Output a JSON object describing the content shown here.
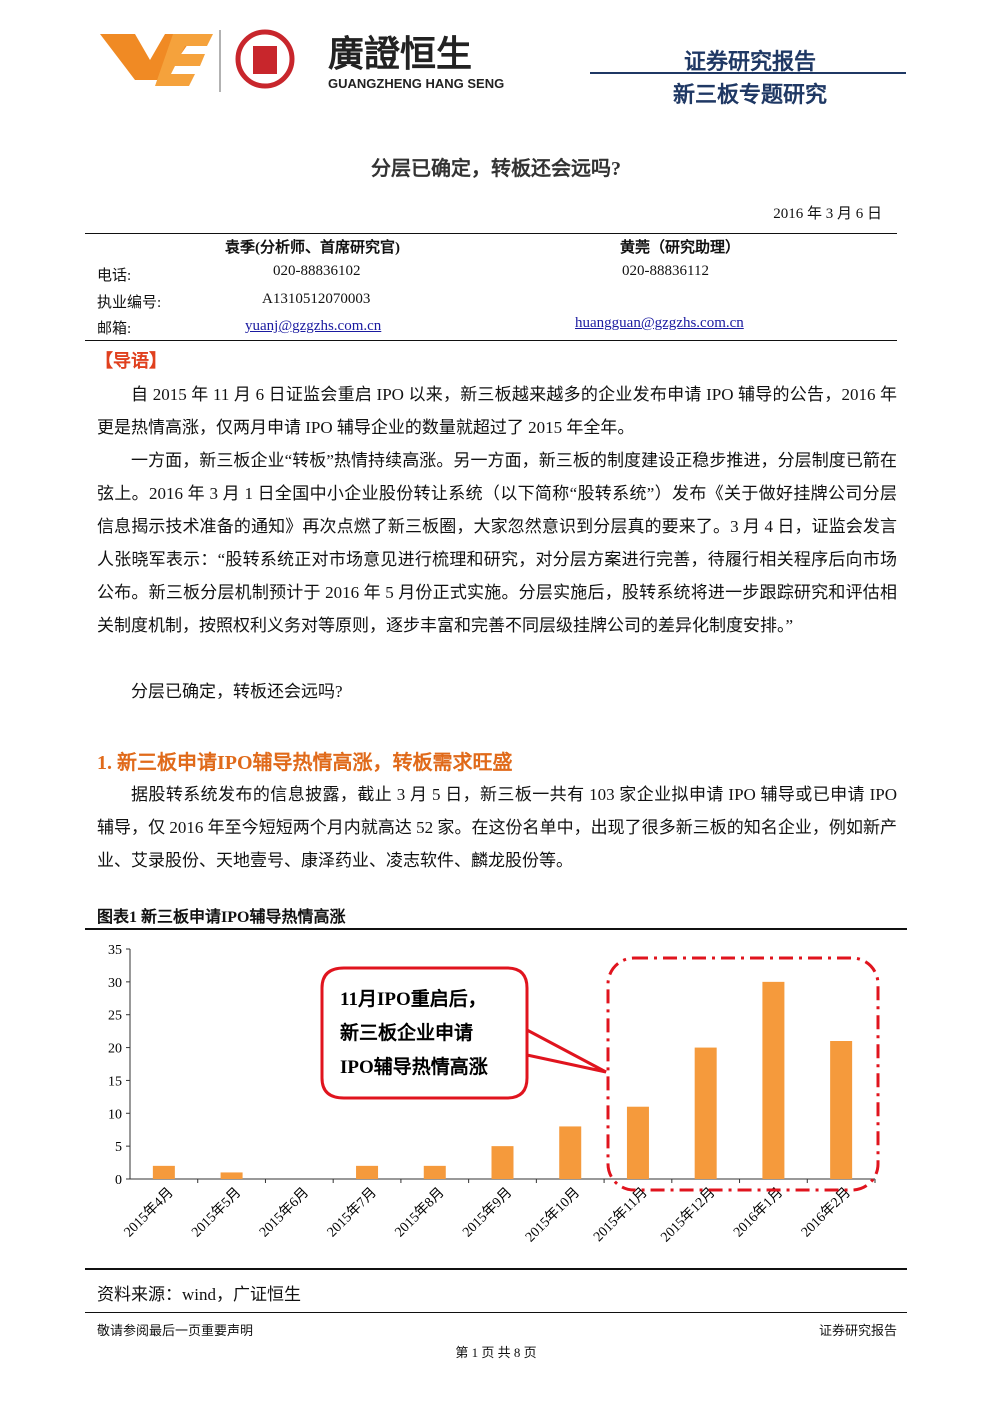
{
  "header": {
    "brand_cn": "廣證恒生",
    "brand_en": "GUANGZHENG HANG SENG",
    "report_type": "证券研究报告",
    "report_subtype": "新三板专题研究"
  },
  "title": "分层已确定，转板还会远吗?",
  "date": "2016 年 3 月 6 日",
  "authors": {
    "labels": [
      "电话:",
      "执业编号:",
      "邮箱:"
    ],
    "list": [
      {
        "name": "袁季(分析师、首席研究官)",
        "phone": "020-88836102",
        "license": "A1310512070003",
        "email": "yuanj@gzgzhs.com.cn"
      },
      {
        "name": "黄莞（研究助理）",
        "phone": "020-88836112",
        "email": "huangguan@gzgzhs.com.cn"
      }
    ]
  },
  "intro": {
    "heading": "【导语】",
    "paragraphs": [
      "自 2015 年 11 月 6 日证监会重启 IPO 以来，新三板越来越多的企业发布申请 IPO 辅导的公告，2016 年更是热情高涨，仅两月申请 IPO 辅导企业的数量就超过了 2015 年全年。",
      "一方面，新三板企业“转板”热情持续高涨。另一方面，新三板的制度建设正稳步推进，分层制度已箭在弦上。2016 年 3 月 1 日全国中小企业股份转让系统（以下简称“股转系统”）发布《关于做好挂牌公司分层信息揭示技术准备的通知》再次点燃了新三板圈，大家忽然意识到分层真的要来了。3 月 4 日，证监会发言人张晓军表示：“股转系统正对市场意见进行梳理和研究，对分层方案进行完善，待履行相关程序后向市场公布。新三板分层机制预计于 2016 年 5 月份正式实施。分层实施后，股转系统将进一步跟踪研究和评估相关制度机制，按照权利义务对等原则，逐步丰富和完善不同层级挂牌公司的差异化制度安排。”",
      "分层已确定，转板还会远吗?"
    ]
  },
  "section": {
    "heading": "1. 新三板申请IPO辅导热情高涨，转板需求旺盛",
    "paragraphs": [
      "据股转系统发布的信息披露，截止 3 月 5 日，新三板一共有 103 家企业拟申请 IPO 辅导或已申请 IPO 辅导，仅 2016 年至今短短两个月内就高达 52 家。在这份名单中，出现了很多新三板的知名企业，例如新产业、艾录股份、天地壹号、康泽药业、凌志软件、麟龙股份等。"
    ]
  },
  "figure": {
    "caption": "图表1  新三板申请IPO辅导热情高涨",
    "source": "资料来源：wind，广证恒生"
  },
  "chart_data": {
    "type": "bar",
    "categories": [
      "2015年4月",
      "2015年5月",
      "2015年6月",
      "2015年7月",
      "2015年8月",
      "2015年9月",
      "2015年10月",
      "2015年11月",
      "2015年12月",
      "2016年1月",
      "2016年2月"
    ],
    "values": [
      2,
      1,
      0,
      2,
      2,
      5,
      8,
      11,
      20,
      30,
      21
    ],
    "color": "#f59a3c",
    "ylim": [
      0,
      35
    ],
    "yticks": [
      0,
      5,
      10,
      15,
      20,
      25,
      30,
      35
    ],
    "annotation": [
      "11月IPO重启后，",
      "新三板企业申请",
      "IPO辅导热情高涨"
    ]
  },
  "footer": {
    "left": "敬请参阅最后一页重要声明",
    "right": "证券研究报告",
    "page": "第 1 页 共 8 页"
  }
}
